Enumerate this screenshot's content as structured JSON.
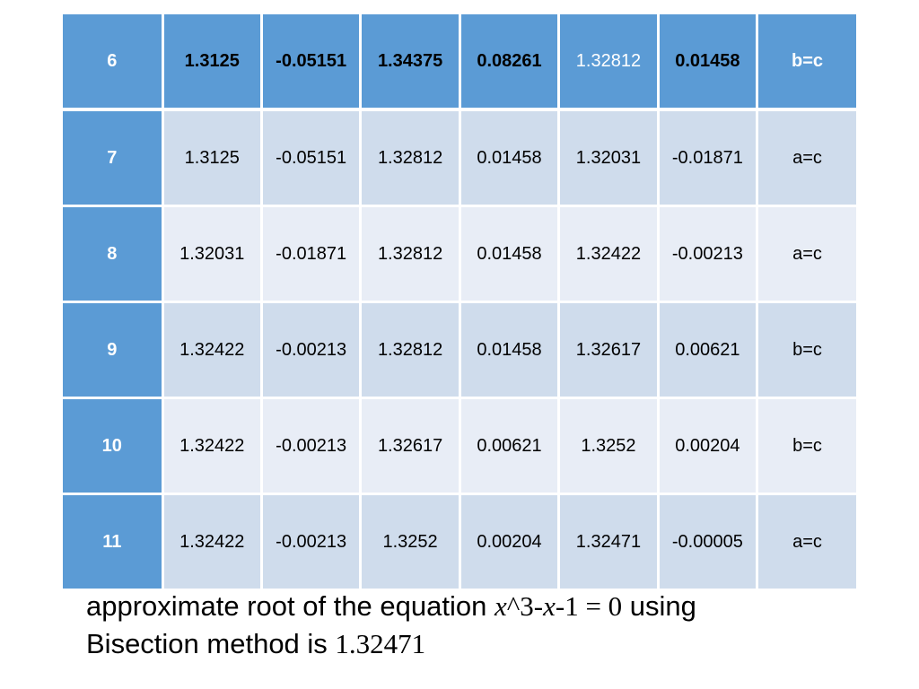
{
  "table": {
    "rows": [
      {
        "n": "6",
        "a": "1.3125",
        "fa": "-0.05151",
        "b": "1.34375",
        "fb": "0.08261",
        "c": "1.32812",
        "fc": "0.01458",
        "action": "b=c"
      },
      {
        "n": "7",
        "a": "1.3125",
        "fa": "-0.05151",
        "b": "1.32812",
        "fb": "0.01458",
        "c": "1.32031",
        "fc": "-0.01871",
        "action": "a=c"
      },
      {
        "n": "8",
        "a": "1.32031",
        "fa": "-0.01871",
        "b": "1.32812",
        "fb": "0.01458",
        "c": "1.32422",
        "fc": "-0.00213",
        "action": "a=c"
      },
      {
        "n": "9",
        "a": "1.32422",
        "fa": "-0.00213",
        "b": "1.32812",
        "fb": "0.01458",
        "c": "1.32617",
        "fc": "0.00621",
        "action": "b=c"
      },
      {
        "n": "10",
        "a": "1.32422",
        "fa": "-0.00213",
        "b": "1.32617",
        "fb": "0.00621",
        "c": "1.3252",
        "fc": "0.00204",
        "action": "b=c"
      },
      {
        "n": "11",
        "a": "1.32422",
        "fa": "-0.00213",
        "b": "1.3252",
        "fb": "0.00204",
        "c": "1.32471",
        "fc": "-0.00005",
        "action": "a=c"
      }
    ],
    "colors": {
      "header_blue": "#5b9bd5",
      "band_dark": "#cfdcec",
      "band_light": "#e8edf6"
    }
  },
  "caption": {
    "line1_text": "approximate root of the equation ",
    "eq_x1": "x",
    "eq_pow": "^3-",
    "eq_x2": "x",
    "eq_rest": "-1 = 0",
    "line1_tail": " using",
    "line2_text": "Bisection method is ",
    "root_value": "1.32471"
  }
}
